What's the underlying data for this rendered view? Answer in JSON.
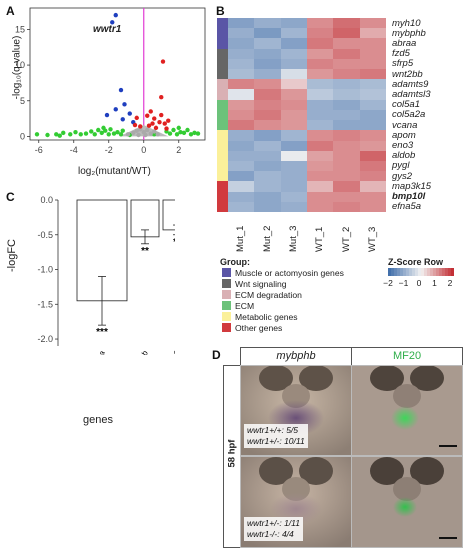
{
  "panels": {
    "a": "A",
    "b": "B",
    "c": "C",
    "d": "D"
  },
  "volcano": {
    "annotation": "wwtr1",
    "xlabel": "log₂(mutant/WT)",
    "ylabel": "-log₁₀(q-value)",
    "xticks": [
      "-6",
      "-4",
      "-2",
      "0",
      "2"
    ],
    "yticks": [
      "0",
      "5",
      "10",
      "15"
    ]
  },
  "heatmap": {
    "columns": [
      "Mut_1",
      "Mut_2",
      "Mut_3",
      "WT_1",
      "WT_2",
      "WT_3"
    ],
    "genes": [
      "myh10",
      "mybphb",
      "abraa",
      "fzd5",
      "sfrp5",
      "wnt2bb",
      "adamts9",
      "adamtsl3",
      "col5a1",
      "col5a2a",
      "vcana",
      "apom",
      "eno3",
      "aldob",
      "pygl",
      "gys2",
      "map3k15",
      "bmp10l",
      "efna5a"
    ],
    "group_title": "Group:",
    "groups": [
      {
        "label": "Muscle or actomyosin genes",
        "color": "#5a55a6"
      },
      {
        "label": "Wnt signaling",
        "color": "#666666"
      },
      {
        "label": "ECM degradation",
        "color": "#d9b0b4"
      },
      {
        "label": "ECM",
        "color": "#6cc27a"
      },
      {
        "label": "Metabolic genes",
        "color": "#fbf09a"
      },
      {
        "label": "Other genes",
        "color": "#d13a3e"
      }
    ],
    "zscore_title": "Z-Score Row",
    "zscore_ticks": [
      "−2",
      "−1",
      "0",
      "1",
      "2"
    ]
  },
  "barchart": {
    "ylabel": "-logFC",
    "xlabel": "genes",
    "yticks": [
      "0.0",
      "-0.5",
      "-1.0",
      "-1.5",
      "-2.0"
    ],
    "categories": [
      "abraa",
      "mybphb",
      "myh10"
    ],
    "significance": [
      "***",
      "**",
      "**"
    ]
  },
  "photos": {
    "col1_title": "mybphb",
    "col2_title": "MF20",
    "col2_color": "#2fae4a",
    "row_label": "58 hpf",
    "top_left_l1": "wwtr1+/+: 5/5",
    "top_left_l2": "wwtr1+/-: 10/11",
    "bottom_left_l1": "wwtr1+/-: 1/11",
    "bottom_left_l2": "wwtr1-/-: 4/4"
  },
  "chart_data": [
    {
      "type": "scatter",
      "xlabel": "log₂(mutant/WT)",
      "ylabel": "-log₁₀(q-value)",
      "xlim": [
        -6.5,
        3.5
      ],
      "ylim": [
        -0.5,
        18
      ],
      "annotation": "wwtr1",
      "series": [
        {
          "color": "#33cc33",
          "points": [
            [
              -6.1,
              0.3
            ],
            [
              -5.5,
              0.2
            ],
            [
              -5.0,
              0.3
            ],
            [
              -4.6,
              0.5
            ],
            [
              -4.2,
              0.3
            ],
            [
              -3.9,
              0.6
            ],
            [
              -3.6,
              0.3
            ],
            [
              -3.3,
              0.4
            ],
            [
              -3.0,
              0.7
            ],
            [
              -2.8,
              0.3
            ],
            [
              -2.6,
              0.9
            ],
            [
              -2.4,
              0.5
            ],
            [
              -2.2,
              0.8
            ],
            [
              -2.0,
              0.3
            ],
            [
              -1.9,
              1.0
            ],
            [
              -1.7,
              0.4
            ],
            [
              -1.5,
              0.6
            ],
            [
              -1.3,
              0.3
            ],
            [
              -1.2,
              0.8
            ],
            [
              1.3,
              0.7
            ],
            [
              1.5,
              0.4
            ],
            [
              1.7,
              0.9
            ],
            [
              1.9,
              0.3
            ],
            [
              2.1,
              0.6
            ],
            [
              2.3,
              0.5
            ],
            [
              2.5,
              0.9
            ],
            [
              2.7,
              0.3
            ],
            [
              2.9,
              0.5
            ],
            [
              3.1,
              0.4
            ],
            [
              -0.8,
              0.2
            ],
            [
              0.6,
              0.3
            ],
            [
              -4.8,
              0.1
            ],
            [
              2.0,
              1.2
            ],
            [
              -2.3,
              1.2
            ]
          ]
        },
        {
          "color": "#aaaaaa",
          "points": [
            [
              -0.9,
              0.3
            ],
            [
              -0.6,
              0.5
            ],
            [
              -0.4,
              0.8
            ],
            [
              -0.2,
              1.0
            ],
            [
              0.0,
              0.6
            ],
            [
              0.2,
              0.9
            ],
            [
              0.4,
              0.4
            ],
            [
              0.6,
              0.7
            ],
            [
              0.8,
              0.3
            ],
            [
              -0.3,
              0.2
            ],
            [
              0.1,
              0.2
            ]
          ]
        },
        {
          "color": "#1f3fbf",
          "points": [
            [
              -1.6,
              17.0
            ],
            [
              -1.8,
              16.0
            ],
            [
              -1.3,
              6.5
            ],
            [
              -1.1,
              4.5
            ],
            [
              -1.6,
              3.8
            ],
            [
              -2.1,
              3.0
            ],
            [
              -0.8,
              3.2
            ],
            [
              -0.6,
              2.0
            ],
            [
              -1.2,
              2.4
            ]
          ]
        },
        {
          "color": "#e02020",
          "points": [
            [
              1.1,
              10.5
            ],
            [
              1.0,
              5.5
            ],
            [
              0.4,
              3.5
            ],
            [
              0.6,
              2.5
            ],
            [
              0.9,
              2.0
            ],
            [
              1.2,
              1.8
            ],
            [
              0.3,
              1.5
            ],
            [
              -0.4,
              2.6
            ],
            [
              -0.2,
              1.4
            ],
            [
              0.7,
              1.2
            ],
            [
              1.4,
              2.2
            ],
            [
              0.2,
              2.9
            ],
            [
              1.0,
              3.0
            ],
            [
              0.5,
              1.8
            ],
            [
              -0.5,
              1.6
            ],
            [
              1.3,
              1.1
            ]
          ]
        }
      ]
    },
    {
      "type": "heatmap",
      "columns": [
        "Mut_1",
        "Mut_2",
        "Mut_3",
        "WT_1",
        "WT_2",
        "WT_3"
      ],
      "rows": [
        "myh10",
        "mybphb",
        "abraa",
        "fzd5",
        "sfrp5",
        "wnt2bb",
        "adamts9",
        "adamtsl3",
        "col5a1",
        "col5a2a",
        "vcana",
        "apom",
        "eno3",
        "aldob",
        "pygl",
        "gys2",
        "map3k15",
        "bmp10l",
        "efna5a"
      ],
      "values": [
        [
          -1.2,
          -1.0,
          -1.1,
          1.0,
          1.3,
          1.0
        ],
        [
          -1.0,
          -1.3,
          -0.9,
          1.1,
          1.4,
          0.7
        ],
        [
          -1.1,
          -0.9,
          -1.2,
          1.2,
          1.0,
          1.0
        ],
        [
          -1.0,
          -1.1,
          -0.9,
          0.9,
          1.2,
          1.0
        ],
        [
          -0.9,
          -1.2,
          -1.0,
          1.1,
          1.0,
          1.0
        ],
        [
          -0.8,
          -1.0,
          -0.3,
          0.9,
          1.1,
          1.2
        ],
        [
          1.1,
          1.0,
          0.4,
          -0.8,
          -0.9,
          -0.8
        ],
        [
          -0.2,
          1.2,
          0.9,
          -0.6,
          -0.8,
          -0.7
        ],
        [
          0.9,
          1.1,
          1.0,
          -1.0,
          -1.1,
          -0.9
        ],
        [
          1.0,
          1.2,
          0.9,
          -1.0,
          -1.0,
          -1.1
        ],
        [
          1.2,
          1.0,
          0.9,
          -0.9,
          -1.1,
          -1.1
        ],
        [
          -1.0,
          -1.2,
          -0.9,
          1.0,
          1.1,
          1.0
        ],
        [
          -1.1,
          -0.9,
          -1.2,
          1.2,
          1.0,
          0.9
        ],
        [
          -1.0,
          -1.0,
          -0.1,
          0.8,
          1.0,
          1.4
        ],
        [
          -0.9,
          -1.1,
          -1.0,
          0.9,
          1.0,
          1.2
        ],
        [
          -1.2,
          -0.9,
          -1.0,
          1.0,
          1.0,
          1.1
        ],
        [
          -0.5,
          -0.9,
          -1.0,
          0.6,
          1.2,
          0.6
        ],
        [
          -1.0,
          -1.1,
          -0.9,
          1.0,
          1.0,
          1.0
        ],
        [
          -0.9,
          -1.1,
          -1.0,
          1.0,
          1.1,
          1.0
        ]
      ],
      "row_groups": [
        "Muscle or actomyosin genes",
        "Muscle or actomyosin genes",
        "Muscle or actomyosin genes",
        "Wnt signaling",
        "Wnt signaling",
        "Wnt signaling",
        "ECM degradation",
        "ECM degradation",
        "ECM",
        "ECM",
        "ECM",
        "Metabolic genes",
        "Metabolic genes",
        "Metabolic genes",
        "Metabolic genes",
        "Metabolic genes",
        "Other genes",
        "Other genes",
        "Other genes"
      ],
      "color_scale": {
        "min": -2,
        "max": 2,
        "low": "#3b6aa8",
        "mid": "#f2f2f2",
        "high": "#c1272d"
      }
    },
    {
      "type": "bar",
      "categories": [
        "abraa",
        "mybphb",
        "myh10"
      ],
      "values": [
        -1.45,
        -0.53,
        -0.43
      ],
      "errors": [
        0.35,
        0.1,
        0.07
      ],
      "significance": [
        "***",
        "**",
        "**"
      ],
      "xlabel": "genes",
      "ylabel": "-logFC",
      "ylim": [
        -2.1,
        0
      ]
    }
  ]
}
